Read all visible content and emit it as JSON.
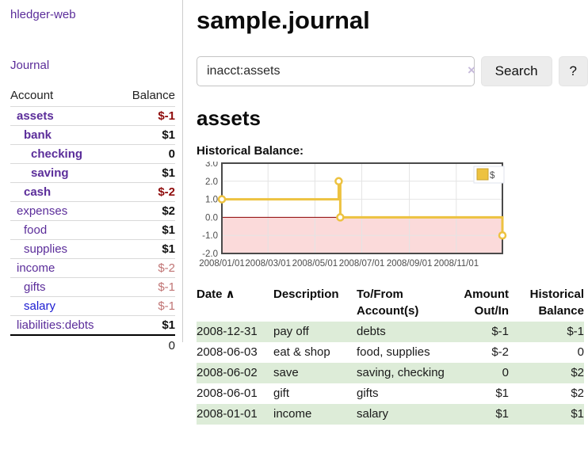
{
  "app": {
    "brand": "hledger-web",
    "nav_journal": "Journal"
  },
  "sidebar": {
    "header": {
      "account": "Account",
      "balance": "Balance"
    },
    "accounts": [
      {
        "name": "assets",
        "depth": 1,
        "bold": true,
        "link": "purple",
        "balance": "$-1",
        "balance_class": "neg"
      },
      {
        "name": "bank",
        "depth": 2,
        "bold": true,
        "link": "purple",
        "balance": "$1",
        "balance_class": "pos"
      },
      {
        "name": "checking",
        "depth": 3,
        "bold": true,
        "link": "purple",
        "balance": "0",
        "balance_class": "pos"
      },
      {
        "name": "saving",
        "depth": 3,
        "bold": true,
        "link": "purple",
        "balance": "$1",
        "balance_class": "pos"
      },
      {
        "name": "cash",
        "depth": 2,
        "bold": true,
        "link": "purple",
        "balance": "$-2",
        "balance_class": "neg"
      },
      {
        "name": "expenses",
        "depth": 1,
        "bold": false,
        "link": "purple",
        "balance": "$2",
        "balance_class": "pos"
      },
      {
        "name": "food",
        "depth": 2,
        "bold": false,
        "link": "purple",
        "balance": "$1",
        "balance_class": "pos"
      },
      {
        "name": "supplies",
        "depth": 2,
        "bold": false,
        "link": "purple",
        "balance": "$1",
        "balance_class": "pos"
      },
      {
        "name": "income",
        "depth": 1,
        "bold": false,
        "link": "purple",
        "balance": "$-2",
        "balance_class": "neg-soft"
      },
      {
        "name": "gifts",
        "depth": 2,
        "bold": false,
        "link": "purple",
        "balance": "$-1",
        "balance_class": "neg-soft"
      },
      {
        "name": "salary",
        "depth": 2,
        "bold": false,
        "link": "blue",
        "balance": "$-1",
        "balance_class": "neg-soft"
      },
      {
        "name": "liabilities:debts",
        "depth": 1,
        "bold": false,
        "link": "purple",
        "balance": "$1",
        "balance_class": "pos"
      }
    ],
    "total": "0"
  },
  "header": {
    "title": "sample.journal"
  },
  "search": {
    "value": "inacct:assets",
    "clear_icon": "×",
    "button": "Search",
    "help": "?"
  },
  "main": {
    "account_title": "assets",
    "chart_label": "Historical Balance:"
  },
  "chart_data": {
    "type": "line",
    "step": true,
    "title": "Historical Balance",
    "series": [
      {
        "name": "$",
        "color": "#edc240",
        "points": [
          [
            "2008-01-01",
            1
          ],
          [
            "2008-06-01",
            2
          ],
          [
            "2008-06-02",
            2
          ],
          [
            "2008-06-03",
            0
          ],
          [
            "2008-12-31",
            -1
          ]
        ]
      }
    ],
    "ylim": [
      -2,
      3
    ],
    "yticks": [
      "3.0",
      "2.0",
      "1.0",
      "0.0",
      "-1.0",
      "-2.0"
    ],
    "xticks": [
      "2008/01/01",
      "2008/03/01",
      "2008/05/01",
      "2008/07/01",
      "2008/09/01",
      "2008/11/01"
    ],
    "legend_position": "top-right",
    "grid": true,
    "negative_region_color": "#fbdada",
    "zero_line_color": "#8b0000"
  },
  "register": {
    "sort_icon": "∧",
    "columns": [
      "Date",
      "Description",
      "To/From Account(s)",
      "Amount Out/In",
      "Historical Balance"
    ],
    "rows": [
      {
        "date": "2008-12-31",
        "description": "pay off",
        "accounts": "debts",
        "amount": "$-1",
        "amount_neg": true,
        "balance": "$-1",
        "balance_neg": true
      },
      {
        "date": "2008-06-03",
        "description": "eat & shop",
        "accounts": "food, supplies",
        "amount": "$-2",
        "amount_neg": true,
        "balance": "0",
        "balance_neg": false
      },
      {
        "date": "2008-06-02",
        "description": "save",
        "accounts": "saving, checking",
        "amount": "0",
        "amount_neg": false,
        "balance": "$2",
        "balance_neg": false
      },
      {
        "date": "2008-06-01",
        "description": "gift",
        "accounts": "gifts",
        "amount": "$1",
        "amount_neg": false,
        "balance": "$2",
        "balance_neg": false
      },
      {
        "date": "2008-01-01",
        "description": "income",
        "accounts": "salary",
        "amount": "$1",
        "amount_neg": false,
        "balance": "$1",
        "balance_neg": false
      }
    ]
  }
}
